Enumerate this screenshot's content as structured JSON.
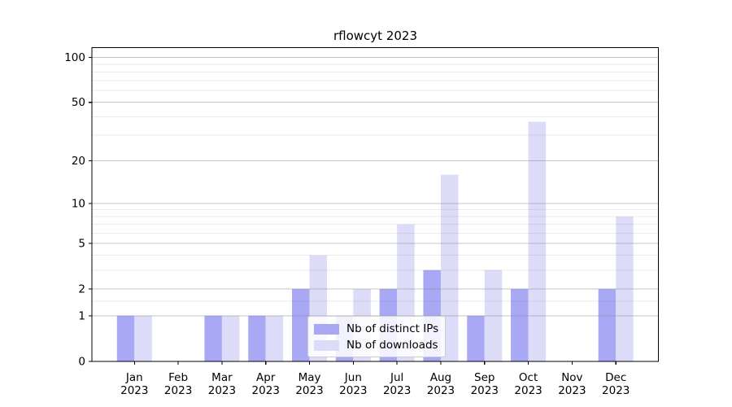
{
  "chart_data": {
    "type": "bar",
    "title": "rflowcyt 2023",
    "categories_months": [
      "Jan",
      "Feb",
      "Mar",
      "Apr",
      "May",
      "Jun",
      "Jul",
      "Aug",
      "Sep",
      "Oct",
      "Nov",
      "Dec"
    ],
    "categories_year": "2023",
    "series": [
      {
        "name": "Nb of distinct IPs",
        "color": "#a8a8f4",
        "values": [
          1,
          0,
          1,
          1,
          2,
          1,
          2,
          3,
          1,
          2,
          0,
          2
        ]
      },
      {
        "name": "Nb of downloads",
        "color": "#dcdcf8",
        "values": [
          1,
          0,
          1,
          1,
          4,
          2,
          7,
          16,
          3,
          37,
          0,
          8
        ]
      }
    ],
    "xlabel": "",
    "ylabel": "",
    "y_scale": "log10(1+x)",
    "ylim": [
      0,
      116
    ],
    "y_ticks": [
      0,
      1,
      2,
      5,
      10,
      20,
      50,
      100
    ],
    "y_minor_gridlines": [
      1.5,
      3,
      4,
      6,
      7,
      8,
      9,
      30,
      40,
      60,
      70,
      80,
      90
    ],
    "grid": true,
    "legend_position": "lower center"
  },
  "colors": {
    "major_grid": "#c6c6c6",
    "minor_grid": "#eaeaea",
    "axis": "#000000"
  }
}
